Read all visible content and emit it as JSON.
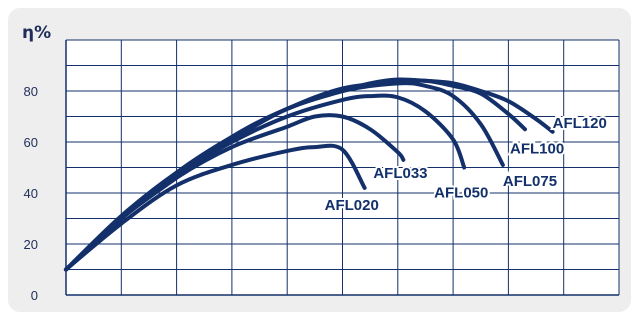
{
  "chart_data": {
    "type": "line",
    "ylabel": "η%",
    "ylim": [
      0,
      100
    ],
    "yticks": [
      0,
      20,
      40,
      60,
      80
    ],
    "xlim": [
      0,
      10
    ],
    "grid": true,
    "line_color": "#13306b",
    "grid_color": "#13306b",
    "series": [
      {
        "name": "AFL020",
        "x": [
          0,
          1,
          2,
          3,
          4,
          4.5,
          5,
          5.4
        ],
        "y": [
          10,
          28,
          43,
          51,
          56.5,
          58,
          57,
          42
        ]
      },
      {
        "name": "AFL033",
        "x": [
          0,
          1,
          2,
          3,
          4,
          4.5,
          5,
          5.5,
          6,
          6.1
        ],
        "y": [
          10,
          30,
          46,
          58,
          66,
          70,
          70,
          65,
          56,
          53
        ]
      },
      {
        "name": "AFL050",
        "x": [
          0,
          1,
          2,
          3,
          4,
          5,
          5.5,
          6,
          6.5,
          7,
          7.2
        ],
        "y": [
          10,
          30,
          47,
          60,
          70,
          76.5,
          78,
          77.5,
          72,
          61,
          50
        ]
      },
      {
        "name": "AFL075",
        "x": [
          0,
          1,
          2,
          3,
          4,
          5,
          6,
          6.5,
          7,
          7.5,
          7.9
        ],
        "y": [
          10,
          30,
          46,
          62,
          73,
          80,
          83,
          82,
          78,
          67,
          51
        ]
      },
      {
        "name": "AFL100",
        "x": [
          0,
          1,
          2,
          3,
          4,
          5,
          6,
          6.5,
          7,
          7.5,
          8,
          8.3
        ],
        "y": [
          10,
          30,
          48,
          62,
          73,
          81,
          83.5,
          84,
          82,
          79,
          71,
          65
        ]
      },
      {
        "name": "AFL120",
        "x": [
          0,
          1,
          2,
          3,
          4,
          5,
          5.5,
          6,
          6.5,
          7,
          7.5,
          8,
          8.5,
          8.8
        ],
        "y": [
          10,
          31,
          48,
          61,
          73,
          80,
          83,
          84.5,
          84,
          83,
          80,
          76,
          69,
          64
        ]
      }
    ],
    "series_labels": [
      "AFL020",
      "AFL033",
      "AFL050",
      "AFL075",
      "AFL100",
      "AFL120"
    ]
  }
}
